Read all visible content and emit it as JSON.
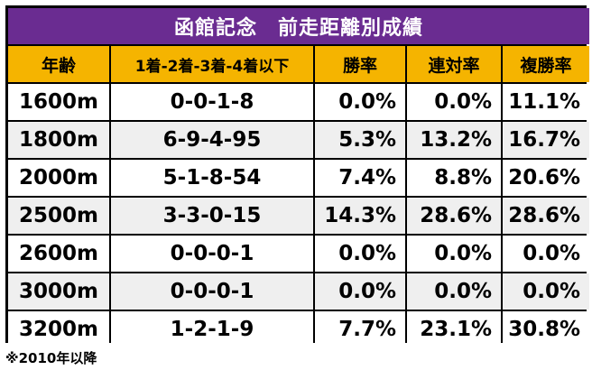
{
  "table": {
    "title": "函館記念　前走距離別成績",
    "headers": [
      "年齢",
      "1着-2着-3着-4着以下",
      "勝率",
      "連対率",
      "複勝率"
    ],
    "rows": [
      {
        "distance": "1600m",
        "record": "0-0-1-8",
        "win": "0.0%",
        "place": "0.0%",
        "show": "11.1%"
      },
      {
        "distance": "1800m",
        "record": "6-9-4-95",
        "win": "5.3%",
        "place": "13.2%",
        "show": "16.7%"
      },
      {
        "distance": "2000m",
        "record": "5-1-8-54",
        "win": "7.4%",
        "place": "8.8%",
        "show": "20.6%"
      },
      {
        "distance": "2500m",
        "record": "3-3-0-15",
        "win": "14.3%",
        "place": "28.6%",
        "show": "28.6%"
      },
      {
        "distance": "2600m",
        "record": "0-0-0-1",
        "win": "0.0%",
        "place": "0.0%",
        "show": "0.0%"
      },
      {
        "distance": "3000m",
        "record": "0-0-0-1",
        "win": "0.0%",
        "place": "0.0%",
        "show": "0.0%"
      },
      {
        "distance": "3200m",
        "record": "1-2-1-9",
        "win": "7.7%",
        "place": "23.1%",
        "show": "30.8%"
      }
    ]
  },
  "footnote": "※2010年以降",
  "colors": {
    "title_bg": "#6a2c91",
    "header_bg": "#f5b400",
    "stripe_bg": "#efefef"
  }
}
